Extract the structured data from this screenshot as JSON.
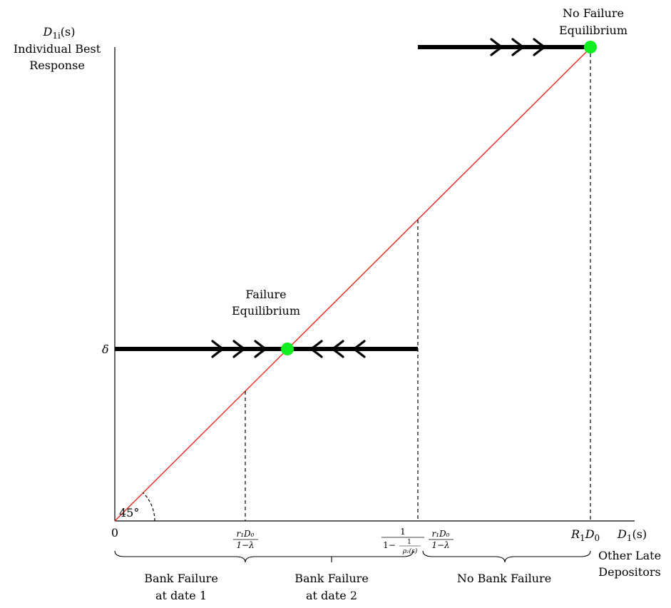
{
  "y_axis": {
    "symbol_main": "D",
    "symbol_sub": "1i",
    "symbol_arg": "(s)",
    "label_line1": "Individual Best",
    "label_line2": "Response"
  },
  "x_axis": {
    "symbol_main": "D",
    "symbol_sub": "1",
    "symbol_arg": "(s)",
    "label_line1": "Other Late",
    "label_line2": "Depositors"
  },
  "origin_label": "0",
  "delta_label": "δ",
  "angle_label": "45°",
  "ticks": {
    "tick1": {
      "num": "r₁D₀",
      "den": "1−λ"
    },
    "tick2": {
      "num1": "1",
      "den1_lead": "1−",
      "inner_num": "1",
      "inner_den": "ρ₂(s)",
      "num2": "r₁D₀",
      "den2": "1−λ"
    },
    "tick3": {
      "main": "R",
      "sub": "1",
      "main2": "D",
      "sub2": "0"
    }
  },
  "equilibria": {
    "failure": {
      "line1": "Failure",
      "line2": "Equilibrium"
    },
    "no_failure": {
      "line1": "No Failure",
      "line2": "Equilibrium"
    }
  },
  "regions": [
    {
      "line1": "Bank Failure",
      "line2": "at date 1"
    },
    {
      "line1": "Bank Failure",
      "line2": "at date 2"
    },
    {
      "line1": "No Bank Failure",
      "line2": ""
    }
  ],
  "colors": {
    "axis": "#000000",
    "diagonal": "#e8261c",
    "equilibrium_dot": "#11ee22",
    "best_response": "#000000"
  },
  "icons": {
    "right_arrow": "chevron-right-icon",
    "left_arrow": "chevron-left-icon"
  }
}
